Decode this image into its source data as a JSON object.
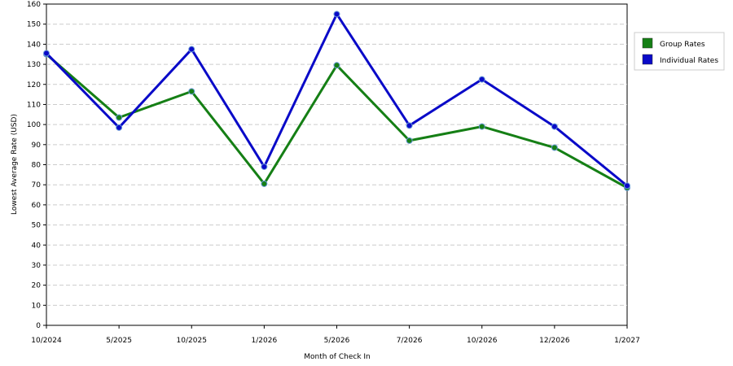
{
  "chart_data": {
    "type": "line",
    "x_label": "Month of Check In",
    "y_label": "Lowest Average Rate (USD)",
    "categories": [
      "10/2024",
      "5/2025",
      "10/2025",
      "1/2026",
      "5/2026",
      "7/2026",
      "10/2026",
      "12/2026",
      "1/2027"
    ],
    "series": [
      {
        "name": "Group Rates",
        "color": "#157f15",
        "values": [
          135,
          103.5,
          116.5,
          70.5,
          129.5,
          92,
          99,
          88.5,
          68.5
        ]
      },
      {
        "name": "Individual Rates",
        "color": "#0a0ac8",
        "values": [
          135.5,
          98.5,
          137.5,
          79,
          155,
          99.5,
          122.5,
          99,
          69.5
        ]
      }
    ],
    "ylim": [
      0,
      160
    ],
    "yticks": [
      0,
      10,
      20,
      30,
      40,
      50,
      60,
      70,
      80,
      90,
      100,
      110,
      120,
      130,
      140,
      150,
      160
    ],
    "grid": true,
    "legend": "right"
  }
}
